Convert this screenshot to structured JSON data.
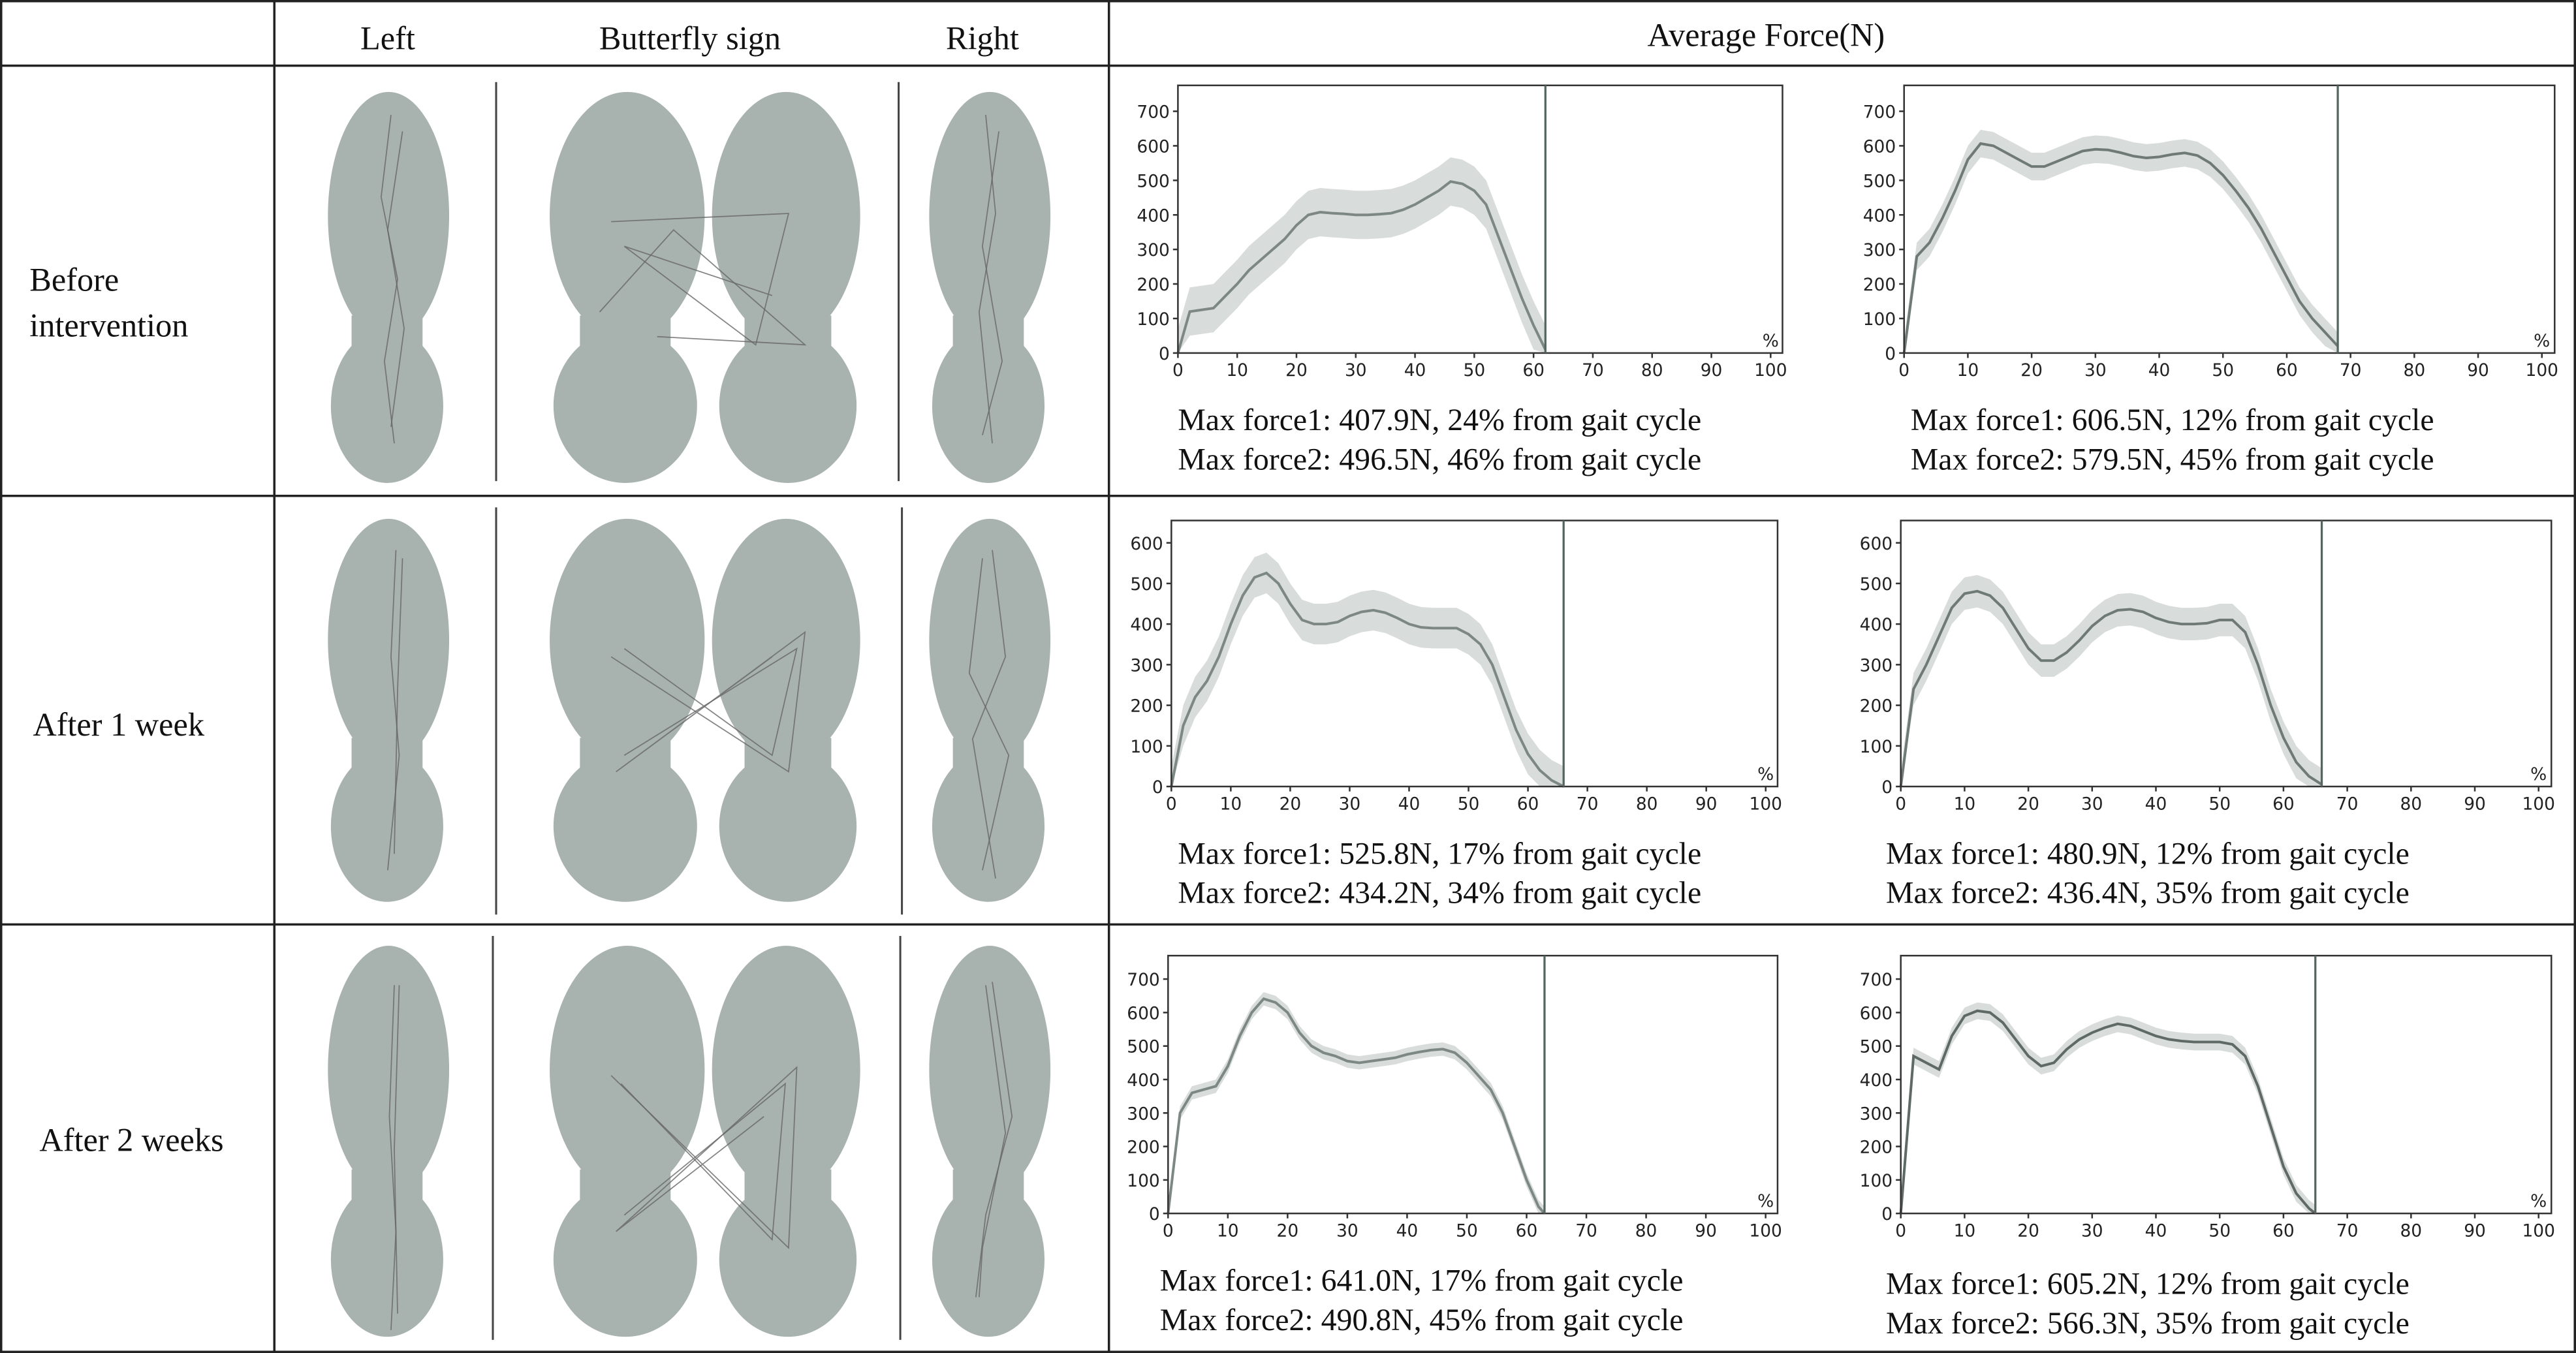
{
  "header": {
    "cells": [
      "Left",
      "Butterfly sign",
      "Right",
      "Average Force(N)"
    ]
  },
  "rows": [
    {
      "label": [
        "Before",
        "intervention"
      ],
      "notes": [
        [
          "Max force1: 407.9N, 24% from gait cycle",
          "Max force2: 496.5N, 46% from gait cycle"
        ],
        [
          "Max force1: 606.5N, 12% from gait cycle",
          "Max force2: 579.5N, 45% from gait cycle"
        ]
      ]
    },
    {
      "label": [
        "After 1 week"
      ],
      "notes": [
        [
          "Max force1: 525.8N, 17% from gait cycle",
          "Max force2: 434.2N, 34% from gait cycle"
        ],
        [
          "Max force1: 480.9N, 12% from gait cycle",
          "Max force2: 436.4N, 35% from gait cycle"
        ]
      ]
    },
    {
      "label": [
        "After 2 weeks"
      ],
      "notes": [
        [
          "Max force1: 641.0N, 17% from gait cycle",
          "Max force2: 490.8N, 45% from gait cycle"
        ],
        [
          "Max force1: 605.2N, 12% from gait cycle",
          "Max force2: 566.3N, 35% from gait cycle"
        ]
      ]
    }
  ],
  "chart_data": [
    {
      "type": "line",
      "xlabel": "%",
      "color": "#7d8885",
      "band_color": "#d8dcdb",
      "x": [
        0,
        2,
        4,
        6,
        8,
        10,
        12,
        14,
        16,
        18,
        20,
        22,
        24,
        26,
        28,
        30,
        32,
        34,
        36,
        38,
        40,
        42,
        44,
        46,
        48,
        50,
        52,
        54,
        56,
        58,
        60,
        62
      ],
      "values": [
        0,
        120,
        125,
        130,
        165,
        200,
        240,
        270,
        300,
        330,
        370,
        400,
        407.9,
        405,
        403,
        400,
        400,
        402,
        405,
        415,
        430,
        450,
        470,
        496.5,
        490,
        470,
        430,
        340,
        250,
        160,
        80,
        10
      ],
      "error": 70,
      "cursor": 62,
      "xlim": [
        0,
        102
      ],
      "ylim": [
        0,
        775
      ],
      "xticks": [
        0,
        10,
        20,
        30,
        40,
        50,
        60,
        70,
        80,
        90,
        100
      ],
      "yticks": [
        0,
        100,
        200,
        300,
        400,
        500,
        600,
        700
      ]
    },
    {
      "type": "line",
      "xlabel": "%",
      "color": "#6f7a77",
      "band_color": "#d8dcdb",
      "x": [
        0,
        2,
        4,
        6,
        8,
        10,
        12,
        14,
        16,
        18,
        20,
        22,
        24,
        26,
        28,
        30,
        32,
        34,
        36,
        38,
        40,
        42,
        44,
        46,
        48,
        50,
        52,
        54,
        56,
        58,
        60,
        62,
        64,
        66,
        68
      ],
      "values": [
        0,
        280,
        320,
        390,
        470,
        560,
        606.5,
        600,
        580,
        560,
        540,
        540,
        555,
        570,
        585,
        590,
        588,
        580,
        570,
        565,
        568,
        575,
        579.5,
        572,
        550,
        515,
        470,
        420,
        360,
        290,
        220,
        150,
        100,
        60,
        20
      ],
      "error": 40,
      "cursor": 68,
      "xlim": [
        0,
        102
      ],
      "ylim": [
        0,
        775
      ],
      "xticks": [
        0,
        10,
        20,
        30,
        40,
        50,
        60,
        70,
        80,
        90,
        100
      ],
      "yticks": [
        0,
        100,
        200,
        300,
        400,
        500,
        600,
        700
      ]
    },
    {
      "type": "line",
      "xlabel": "%",
      "color": "#7d8885",
      "band_color": "#d8dcdb",
      "x": [
        0,
        2,
        4,
        6,
        8,
        10,
        12,
        14,
        16,
        18,
        20,
        22,
        24,
        26,
        28,
        30,
        32,
        34,
        36,
        38,
        40,
        42,
        44,
        46,
        48,
        50,
        52,
        54,
        56,
        58,
        60,
        62,
        64,
        66
      ],
      "values": [
        0,
        150,
        220,
        260,
        320,
        400,
        470,
        515,
        525.8,
        500,
        450,
        410,
        400,
        400,
        405,
        420,
        430,
        434.2,
        428,
        415,
        400,
        392,
        390,
        390,
        390,
        375,
        350,
        300,
        220,
        140,
        80,
        40,
        15,
        0
      ],
      "error": 50,
      "cursor": 66,
      "xlim": [
        0,
        102
      ],
      "ylim": [
        0,
        655
      ],
      "xticks": [
        0,
        10,
        20,
        30,
        40,
        50,
        60,
        70,
        80,
        90,
        100
      ],
      "yticks": [
        0,
        100,
        200,
        300,
        400,
        500,
        600
      ]
    },
    {
      "type": "line",
      "xlabel": "%",
      "color": "#6f7a77",
      "band_color": "#d8dcdb",
      "x": [
        0,
        2,
        4,
        6,
        8,
        10,
        12,
        14,
        16,
        18,
        20,
        22,
        24,
        26,
        28,
        30,
        32,
        34,
        36,
        38,
        40,
        42,
        44,
        46,
        48,
        50,
        52,
        54,
        56,
        58,
        60,
        62,
        64,
        66
      ],
      "values": [
        0,
        240,
        300,
        370,
        440,
        475,
        480.9,
        470,
        440,
        390,
        340,
        310,
        310,
        330,
        360,
        395,
        420,
        434,
        436.4,
        430,
        415,
        405,
        400,
        400,
        402,
        410,
        410,
        380,
        300,
        200,
        120,
        60,
        25,
        5
      ],
      "error": 40,
      "cursor": 66,
      "xlim": [
        0,
        102
      ],
      "ylim": [
        0,
        655
      ],
      "xticks": [
        0,
        10,
        20,
        30,
        40,
        50,
        60,
        70,
        80,
        90,
        100
      ],
      "yticks": [
        0,
        100,
        200,
        300,
        400,
        500,
        600
      ]
    },
    {
      "type": "line",
      "xlabel": "%",
      "color": "#7d8885",
      "band_color": "#d8dcdb",
      "x": [
        0,
        2,
        4,
        6,
        8,
        10,
        12,
        14,
        16,
        18,
        20,
        22,
        24,
        26,
        28,
        30,
        32,
        34,
        36,
        38,
        40,
        42,
        44,
        46,
        48,
        50,
        52,
        54,
        56,
        58,
        60,
        62,
        63
      ],
      "values": [
        0,
        300,
        360,
        370,
        380,
        440,
        530,
        600,
        641.0,
        630,
        600,
        540,
        500,
        480,
        470,
        455,
        450,
        455,
        460,
        465,
        475,
        482,
        488,
        490.8,
        480,
        450,
        410,
        370,
        300,
        200,
        100,
        20,
        0
      ],
      "error": 20,
      "cursor": 63,
      "xlim": [
        0,
        102
      ],
      "ylim": [
        0,
        770
      ],
      "xticks": [
        0,
        10,
        20,
        30,
        40,
        50,
        60,
        70,
        80,
        90,
        100
      ],
      "yticks": [
        0,
        100,
        200,
        300,
        400,
        500,
        600,
        700
      ]
    },
    {
      "type": "line",
      "xlabel": "%",
      "color": "#5f6a67",
      "band_color": "#d8dcdb",
      "x": [
        0,
        2,
        4,
        6,
        8,
        10,
        12,
        14,
        16,
        18,
        20,
        22,
        24,
        26,
        28,
        30,
        32,
        34,
        36,
        38,
        40,
        42,
        44,
        46,
        48,
        50,
        52,
        54,
        56,
        58,
        60,
        62,
        64,
        65
      ],
      "values": [
        0,
        470,
        450,
        430,
        530,
        590,
        605.2,
        600,
        570,
        520,
        470,
        440,
        450,
        490,
        520,
        540,
        555,
        566.3,
        560,
        545,
        530,
        520,
        515,
        512,
        512,
        512,
        505,
        470,
        380,
        260,
        140,
        60,
        15,
        0
      ],
      "error": 25,
      "cursor": 65,
      "xlim": [
        0,
        102
      ],
      "ylim": [
        0,
        770
      ],
      "xticks": [
        0,
        10,
        20,
        30,
        40,
        50,
        60,
        70,
        80,
        90,
        100
      ],
      "yticks": [
        0,
        100,
        200,
        300,
        400,
        500,
        600,
        700
      ]
    }
  ]
}
